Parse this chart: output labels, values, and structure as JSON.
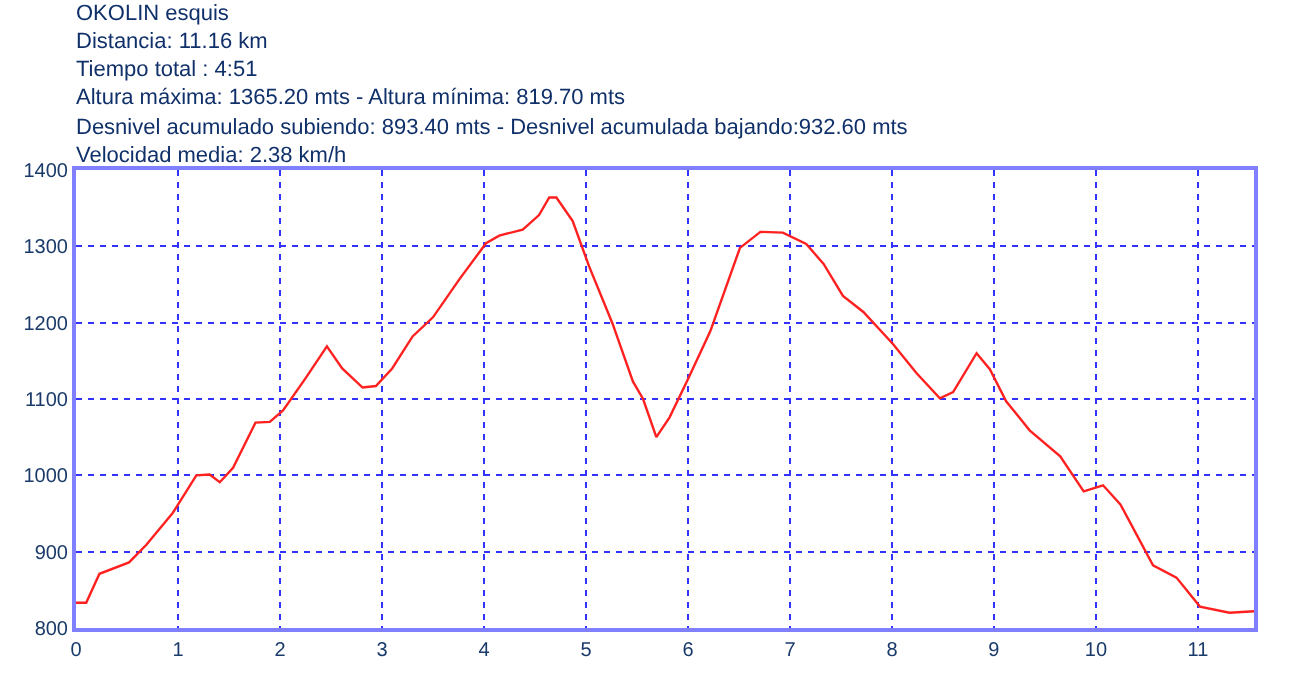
{
  "chart_data": {
    "type": "line",
    "title": "OKOLIN esquis",
    "annotations": [
      "Distancia: 11.16 km",
      "Tiempo total : 4:51",
      "Altura máxima: 1365.20 mts - Altura mínima: 819.70 mts",
      "Desnivel acumulado subiendo: 893.40 mts - Desnivel acumulada bajando:932.60 mts",
      "Velocidad media: 2.38 km/h"
    ],
    "x": [
      0,
      0.1,
      0.23,
      0.52,
      0.69,
      0.95,
      1.18,
      1.31,
      1.41,
      1.54,
      1.76,
      1.9,
      2.03,
      2.25,
      2.46,
      2.61,
      2.81,
      2.94,
      3.1,
      3.3,
      3.5,
      3.76,
      4.02,
      4.15,
      4.38,
      4.54,
      4.64,
      4.71,
      4.87,
      5.03,
      5.26,
      5.46,
      5.56,
      5.69,
      5.82,
      6.0,
      6.22,
      6.51,
      6.71,
      6.93,
      7.16,
      7.33,
      7.52,
      7.72,
      8.01,
      8.24,
      8.47,
      8.6,
      8.83,
      8.96,
      9.12,
      9.35,
      9.65,
      9.88,
      10.07,
      10.24,
      10.56,
      10.79,
      11.02,
      11.31,
      11.55
    ],
    "series": [
      {
        "color": "#ff2020",
        "values": [
          833,
          833,
          871,
          886,
          909,
          951,
          1000,
          1001,
          991,
          1010,
          1069,
          1070,
          1085,
          1127,
          1169,
          1140,
          1115,
          1117,
          1140,
          1182,
          1207,
          1257,
          1304,
          1314,
          1322,
          1341,
          1364,
          1364,
          1333,
          1274,
          1199,
          1123,
          1100,
          1050,
          1076,
          1126,
          1189,
          1298,
          1319,
          1318,
          1303,
          1277,
          1235,
          1214,
          1172,
          1134,
          1101,
          1109,
          1160,
          1139,
          1097,
          1059,
          1025,
          979,
          987,
          962,
          882,
          866,
          828,
          820,
          822
        ]
      }
    ],
    "xlim": [
      0,
      11.55
    ],
    "xticks": [
      0,
      1,
      2,
      3,
      4,
      5,
      6,
      7,
      8,
      9,
      10,
      11
    ],
    "ylim": [
      800,
      1400
    ],
    "yticks": [
      800,
      900,
      1000,
      1100,
      1200,
      1300,
      1400
    ],
    "grid": true,
    "marker": "none",
    "line_style": "solid"
  }
}
